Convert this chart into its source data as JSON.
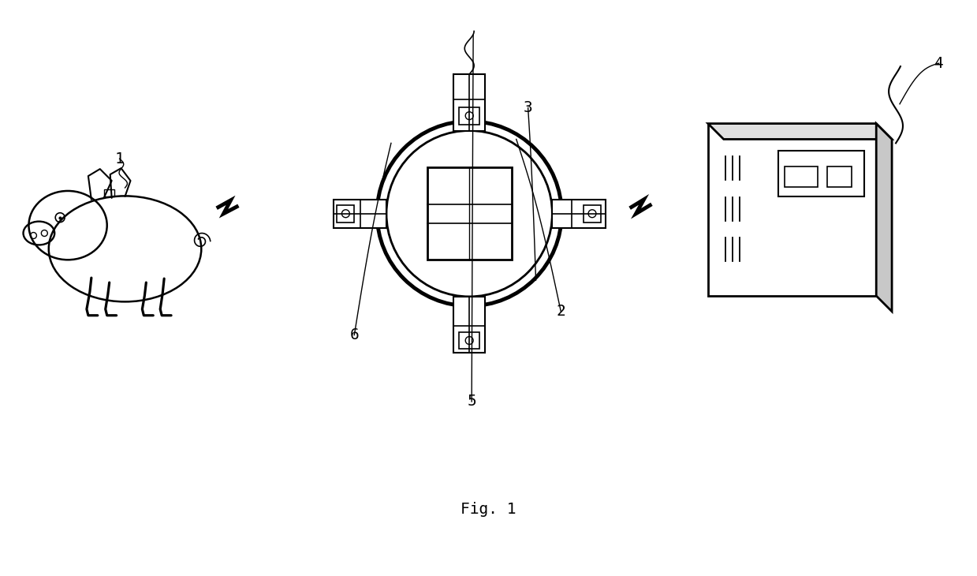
{
  "background_color": "#ffffff",
  "fig_label": "Fig. 1",
  "label_1": "1",
  "label_2": "2",
  "label_3": "3",
  "label_4": "4",
  "label_5": "5",
  "label_6": "6",
  "line_color": "#000000",
  "line_width": 1.5,
  "font_family": "monospace"
}
